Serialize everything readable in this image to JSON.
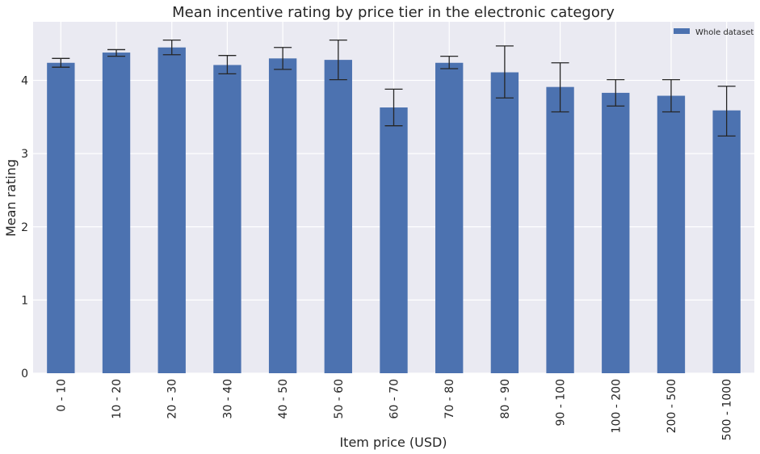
{
  "chart_data": {
    "type": "bar",
    "title": "Mean incentive rating by price tier in the electronic category",
    "xlabel": "Item price (USD)",
    "ylabel": "Mean rating",
    "ylim": [
      0,
      4.8
    ],
    "yticks": [
      0,
      1,
      2,
      3,
      4
    ],
    "grid": true,
    "legend_position": "top-right",
    "categories": [
      "0 - 10",
      "10 - 20",
      "20 - 30",
      "30 - 40",
      "40 - 50",
      "50 - 60",
      "60 - 70",
      "70 - 80",
      "80 - 90",
      "90 - 100",
      "100 - 200",
      "200 - 500",
      "500 - 1000"
    ],
    "series": [
      {
        "name": "Whole dataset",
        "color": "#4c72b0",
        "values": [
          4.24,
          4.38,
          4.45,
          4.21,
          4.3,
          4.28,
          3.63,
          4.24,
          4.11,
          3.91,
          3.83,
          3.79,
          3.59
        ],
        "error_low": [
          4.18,
          4.33,
          4.35,
          4.09,
          4.15,
          4.01,
          3.38,
          4.16,
          3.76,
          3.57,
          3.65,
          3.57,
          3.24
        ],
        "error_high": [
          4.3,
          4.42,
          4.55,
          4.34,
          4.45,
          4.55,
          3.88,
          4.33,
          4.47,
          4.24,
          4.01,
          4.01,
          3.92
        ]
      }
    ]
  },
  "colors": {
    "plot_background": "#eaeaf2",
    "grid": "#ffffff",
    "text": "#262626",
    "error_bar": "#262626"
  }
}
